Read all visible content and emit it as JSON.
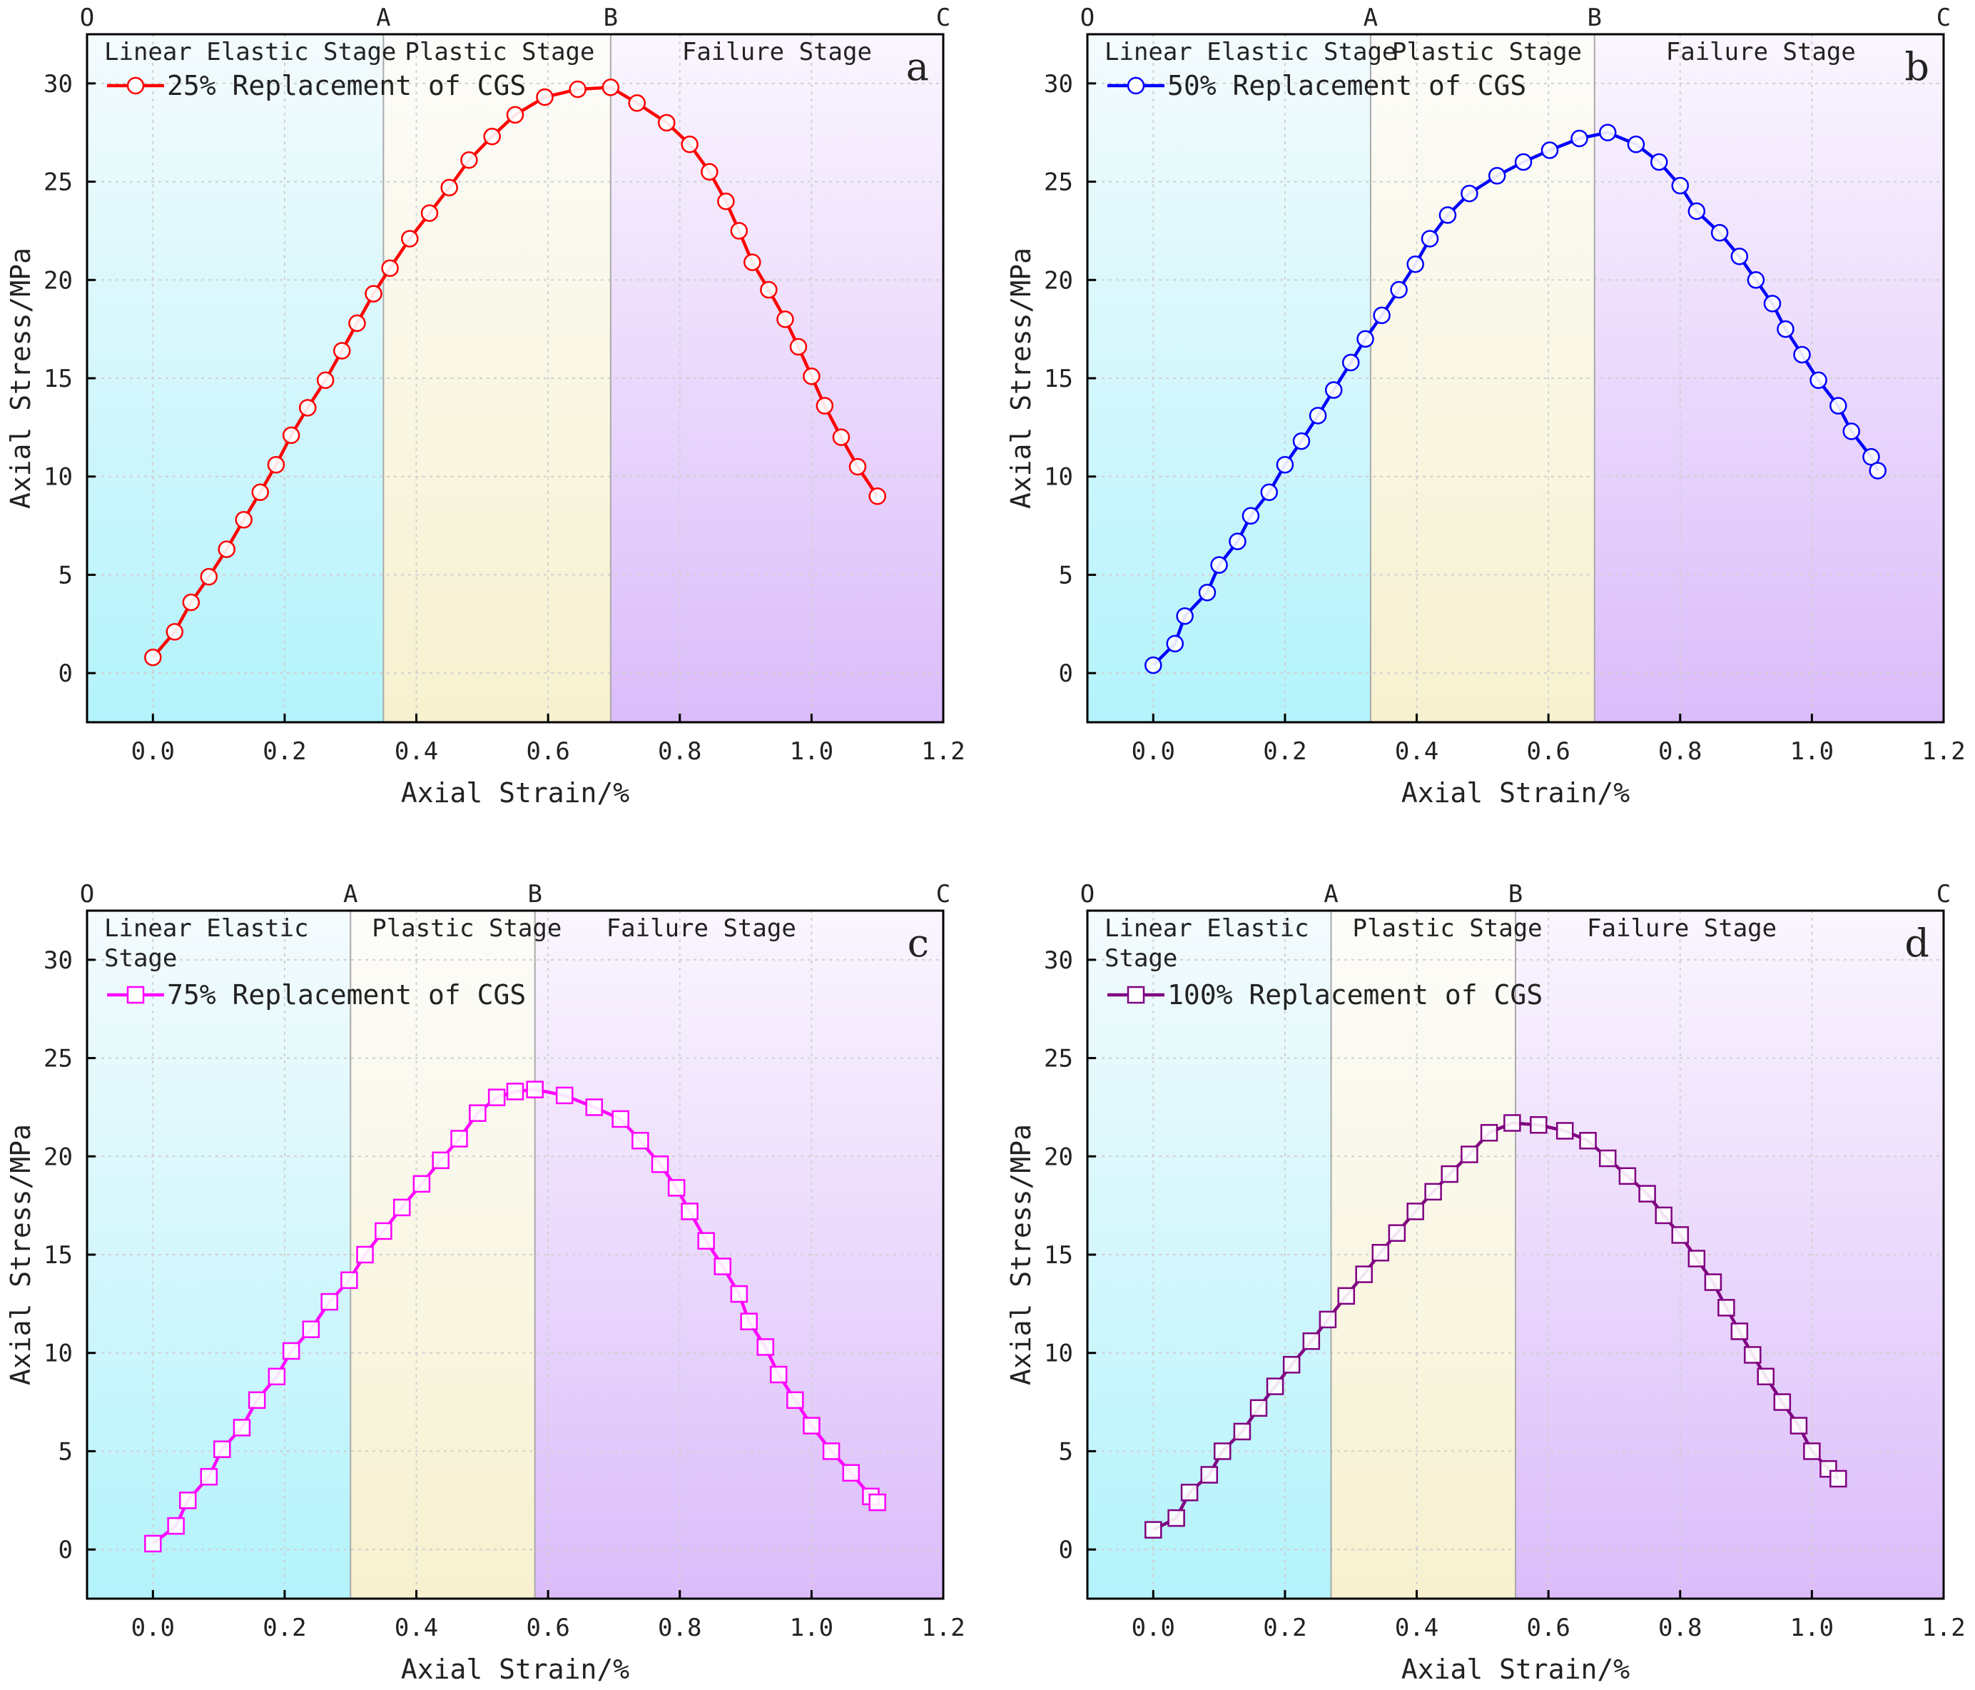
{
  "chart_data": [
    {
      "type": "line",
      "panel_letter": "a",
      "color": "#ff0000",
      "marker": "circle",
      "xlabel": "Axial Strain/%",
      "ylabel": "Axial Stress/MPa",
      "xlim": [
        -0.1,
        1.2
      ],
      "ylim": [
        -2.5,
        32.5
      ],
      "xticks": [
        "0.0",
        "0.2",
        "0.4",
        "0.6",
        "0.8",
        "1.0",
        "1.2"
      ],
      "yticks": [
        "0",
        "5",
        "10",
        "15",
        "20",
        "25",
        "30"
      ],
      "top_labels": [
        "O",
        "A",
        "B",
        "C"
      ],
      "stage_bounds": [
        0.35,
        0.695
      ],
      "stages": [
        [
          "Linear Elastic Stage"
        ],
        [
          "Plastic Stage"
        ],
        [
          "Failure Stage"
        ]
      ],
      "series": [
        {
          "name": "25% Replacement of CGS",
          "x": [
            0.0,
            0.033,
            0.058,
            0.085,
            0.112,
            0.138,
            0.163,
            0.187,
            0.21,
            0.235,
            0.262,
            0.287,
            0.31,
            0.335,
            0.36,
            0.39,
            0.42,
            0.45,
            0.48,
            0.515,
            0.55,
            0.595,
            0.645,
            0.695,
            0.735,
            0.78,
            0.815,
            0.845,
            0.87,
            0.89,
            0.91,
            0.935,
            0.96,
            0.98,
            1.0,
            1.02,
            1.045,
            1.07,
            1.1
          ],
          "y": [
            0.8,
            2.1,
            3.6,
            4.9,
            6.3,
            7.8,
            9.2,
            10.6,
            12.1,
            13.5,
            14.9,
            16.4,
            17.8,
            19.3,
            20.6,
            22.1,
            23.4,
            24.7,
            26.1,
            27.3,
            28.4,
            29.3,
            29.7,
            29.8,
            29.0,
            28.0,
            26.9,
            25.5,
            24.0,
            22.5,
            20.9,
            19.5,
            18.0,
            16.6,
            15.1,
            13.6,
            12.0,
            10.5,
            9.0
          ]
        }
      ]
    },
    {
      "type": "line",
      "panel_letter": "b",
      "color": "#0000ff",
      "marker": "circle",
      "xlabel": "Axial Strain/%",
      "ylabel": "Axial Stress/MPa",
      "xlim": [
        -0.1,
        1.2
      ],
      "ylim": [
        -2.5,
        32.5
      ],
      "xticks": [
        "0.0",
        "0.2",
        "0.4",
        "0.6",
        "0.8",
        "1.0",
        "1.2"
      ],
      "yticks": [
        "0",
        "5",
        "10",
        "15",
        "20",
        "25",
        "30"
      ],
      "top_labels": [
        "O",
        "A",
        "B",
        "C"
      ],
      "stage_bounds": [
        0.33,
        0.67
      ],
      "stages": [
        [
          "Linear Elastic Stage"
        ],
        [
          "Plastic Stage"
        ],
        [
          "Failure Stage"
        ]
      ],
      "series": [
        {
          "name": "50% Replacement of CGS",
          "x": [
            0.0,
            0.033,
            0.048,
            0.082,
            0.1,
            0.128,
            0.148,
            0.176,
            0.2,
            0.225,
            0.25,
            0.274,
            0.3,
            0.322,
            0.347,
            0.373,
            0.398,
            0.42,
            0.447,
            0.48,
            0.522,
            0.562,
            0.602,
            0.647,
            0.69,
            0.733,
            0.768,
            0.8,
            0.825,
            0.86,
            0.89,
            0.915,
            0.94,
            0.96,
            0.985,
            1.01,
            1.04,
            1.06,
            1.09,
            1.1
          ],
          "y": [
            0.4,
            1.5,
            2.9,
            4.1,
            5.5,
            6.7,
            8.0,
            9.2,
            10.6,
            11.8,
            13.1,
            14.4,
            15.8,
            17.0,
            18.2,
            19.5,
            20.8,
            22.1,
            23.3,
            24.4,
            25.3,
            26.0,
            26.6,
            27.2,
            27.5,
            26.9,
            26.0,
            24.8,
            23.5,
            22.4,
            21.2,
            20.0,
            18.8,
            17.5,
            16.2,
            14.9,
            13.6,
            12.3,
            11.0,
            10.3
          ]
        }
      ]
    },
    {
      "type": "line",
      "panel_letter": "c",
      "color": "#ff00ff",
      "marker": "square",
      "xlabel": "Axial Strain/%",
      "ylabel": "Axial Stress/MPa",
      "xlim": [
        -0.1,
        1.2
      ],
      "ylim": [
        -2.5,
        32.5
      ],
      "xticks": [
        "0.0",
        "0.2",
        "0.4",
        "0.6",
        "0.8",
        "1.0",
        "1.2"
      ],
      "yticks": [
        "0",
        "5",
        "10",
        "15",
        "20",
        "25",
        "30"
      ],
      "top_labels": [
        "O",
        "A",
        "B",
        "C"
      ],
      "stage_bounds": [
        0.3,
        0.58
      ],
      "stages": [
        [
          "Linear Elastic",
          "Stage"
        ],
        [
          "Plastic Stage"
        ],
        [
          "Failure Stage"
        ]
      ],
      "series": [
        {
          "name": "75% Replacement of CGS",
          "x": [
            0.0,
            0.035,
            0.053,
            0.085,
            0.105,
            0.135,
            0.158,
            0.188,
            0.21,
            0.24,
            0.268,
            0.298,
            0.322,
            0.35,
            0.378,
            0.408,
            0.437,
            0.465,
            0.493,
            0.522,
            0.55,
            0.58,
            0.625,
            0.67,
            0.71,
            0.74,
            0.77,
            0.795,
            0.815,
            0.84,
            0.865,
            0.89,
            0.905,
            0.93,
            0.95,
            0.975,
            1.0,
            1.03,
            1.06,
            1.09,
            1.1
          ],
          "y": [
            0.3,
            1.2,
            2.5,
            3.7,
            5.1,
            6.2,
            7.6,
            8.8,
            10.1,
            11.2,
            12.6,
            13.7,
            15.0,
            16.2,
            17.4,
            18.6,
            19.8,
            20.9,
            22.2,
            23.0,
            23.3,
            23.4,
            23.1,
            22.5,
            21.9,
            20.8,
            19.6,
            18.4,
            17.2,
            15.7,
            14.4,
            13.0,
            11.6,
            10.3,
            8.9,
            7.6,
            6.3,
            5.0,
            3.9,
            2.7,
            2.4
          ]
        }
      ]
    },
    {
      "type": "line",
      "panel_letter": "d",
      "color": "#800080",
      "marker": "square",
      "xlabel": "Axial Strain/%",
      "ylabel": "Axial Stress/MPa",
      "xlim": [
        -0.1,
        1.2
      ],
      "ylim": [
        -2.5,
        32.5
      ],
      "xticks": [
        "0.0",
        "0.2",
        "0.4",
        "0.6",
        "0.8",
        "1.0",
        "1.2"
      ],
      "yticks": [
        "0",
        "5",
        "10",
        "15",
        "20",
        "25",
        "30"
      ],
      "top_labels": [
        "O",
        "A",
        "B",
        "C"
      ],
      "stage_bounds": [
        0.27,
        0.55
      ],
      "stages": [
        [
          "Linear Elastic",
          "Stage"
        ],
        [
          "Plastic Stage"
        ],
        [
          "Failure Stage"
        ]
      ],
      "series": [
        {
          "name": "100% Replacement of CGS",
          "x": [
            0.0,
            0.035,
            0.055,
            0.085,
            0.105,
            0.135,
            0.16,
            0.185,
            0.21,
            0.24,
            0.265,
            0.293,
            0.32,
            0.345,
            0.37,
            0.398,
            0.425,
            0.45,
            0.48,
            0.51,
            0.545,
            0.585,
            0.625,
            0.66,
            0.69,
            0.72,
            0.75,
            0.775,
            0.8,
            0.825,
            0.85,
            0.87,
            0.89,
            0.91,
            0.93,
            0.955,
            0.98,
            1.0,
            1.025,
            1.04
          ],
          "y": [
            1.0,
            1.6,
            2.9,
            3.8,
            5.0,
            6.0,
            7.2,
            8.3,
            9.4,
            10.6,
            11.7,
            12.9,
            14.0,
            15.1,
            16.1,
            17.2,
            18.2,
            19.1,
            20.1,
            21.2,
            21.7,
            21.6,
            21.3,
            20.8,
            19.9,
            19.0,
            18.1,
            17.0,
            16.0,
            14.8,
            13.6,
            12.3,
            11.1,
            9.9,
            8.8,
            7.5,
            6.3,
            5.0,
            4.1,
            3.6
          ]
        }
      ]
    }
  ]
}
